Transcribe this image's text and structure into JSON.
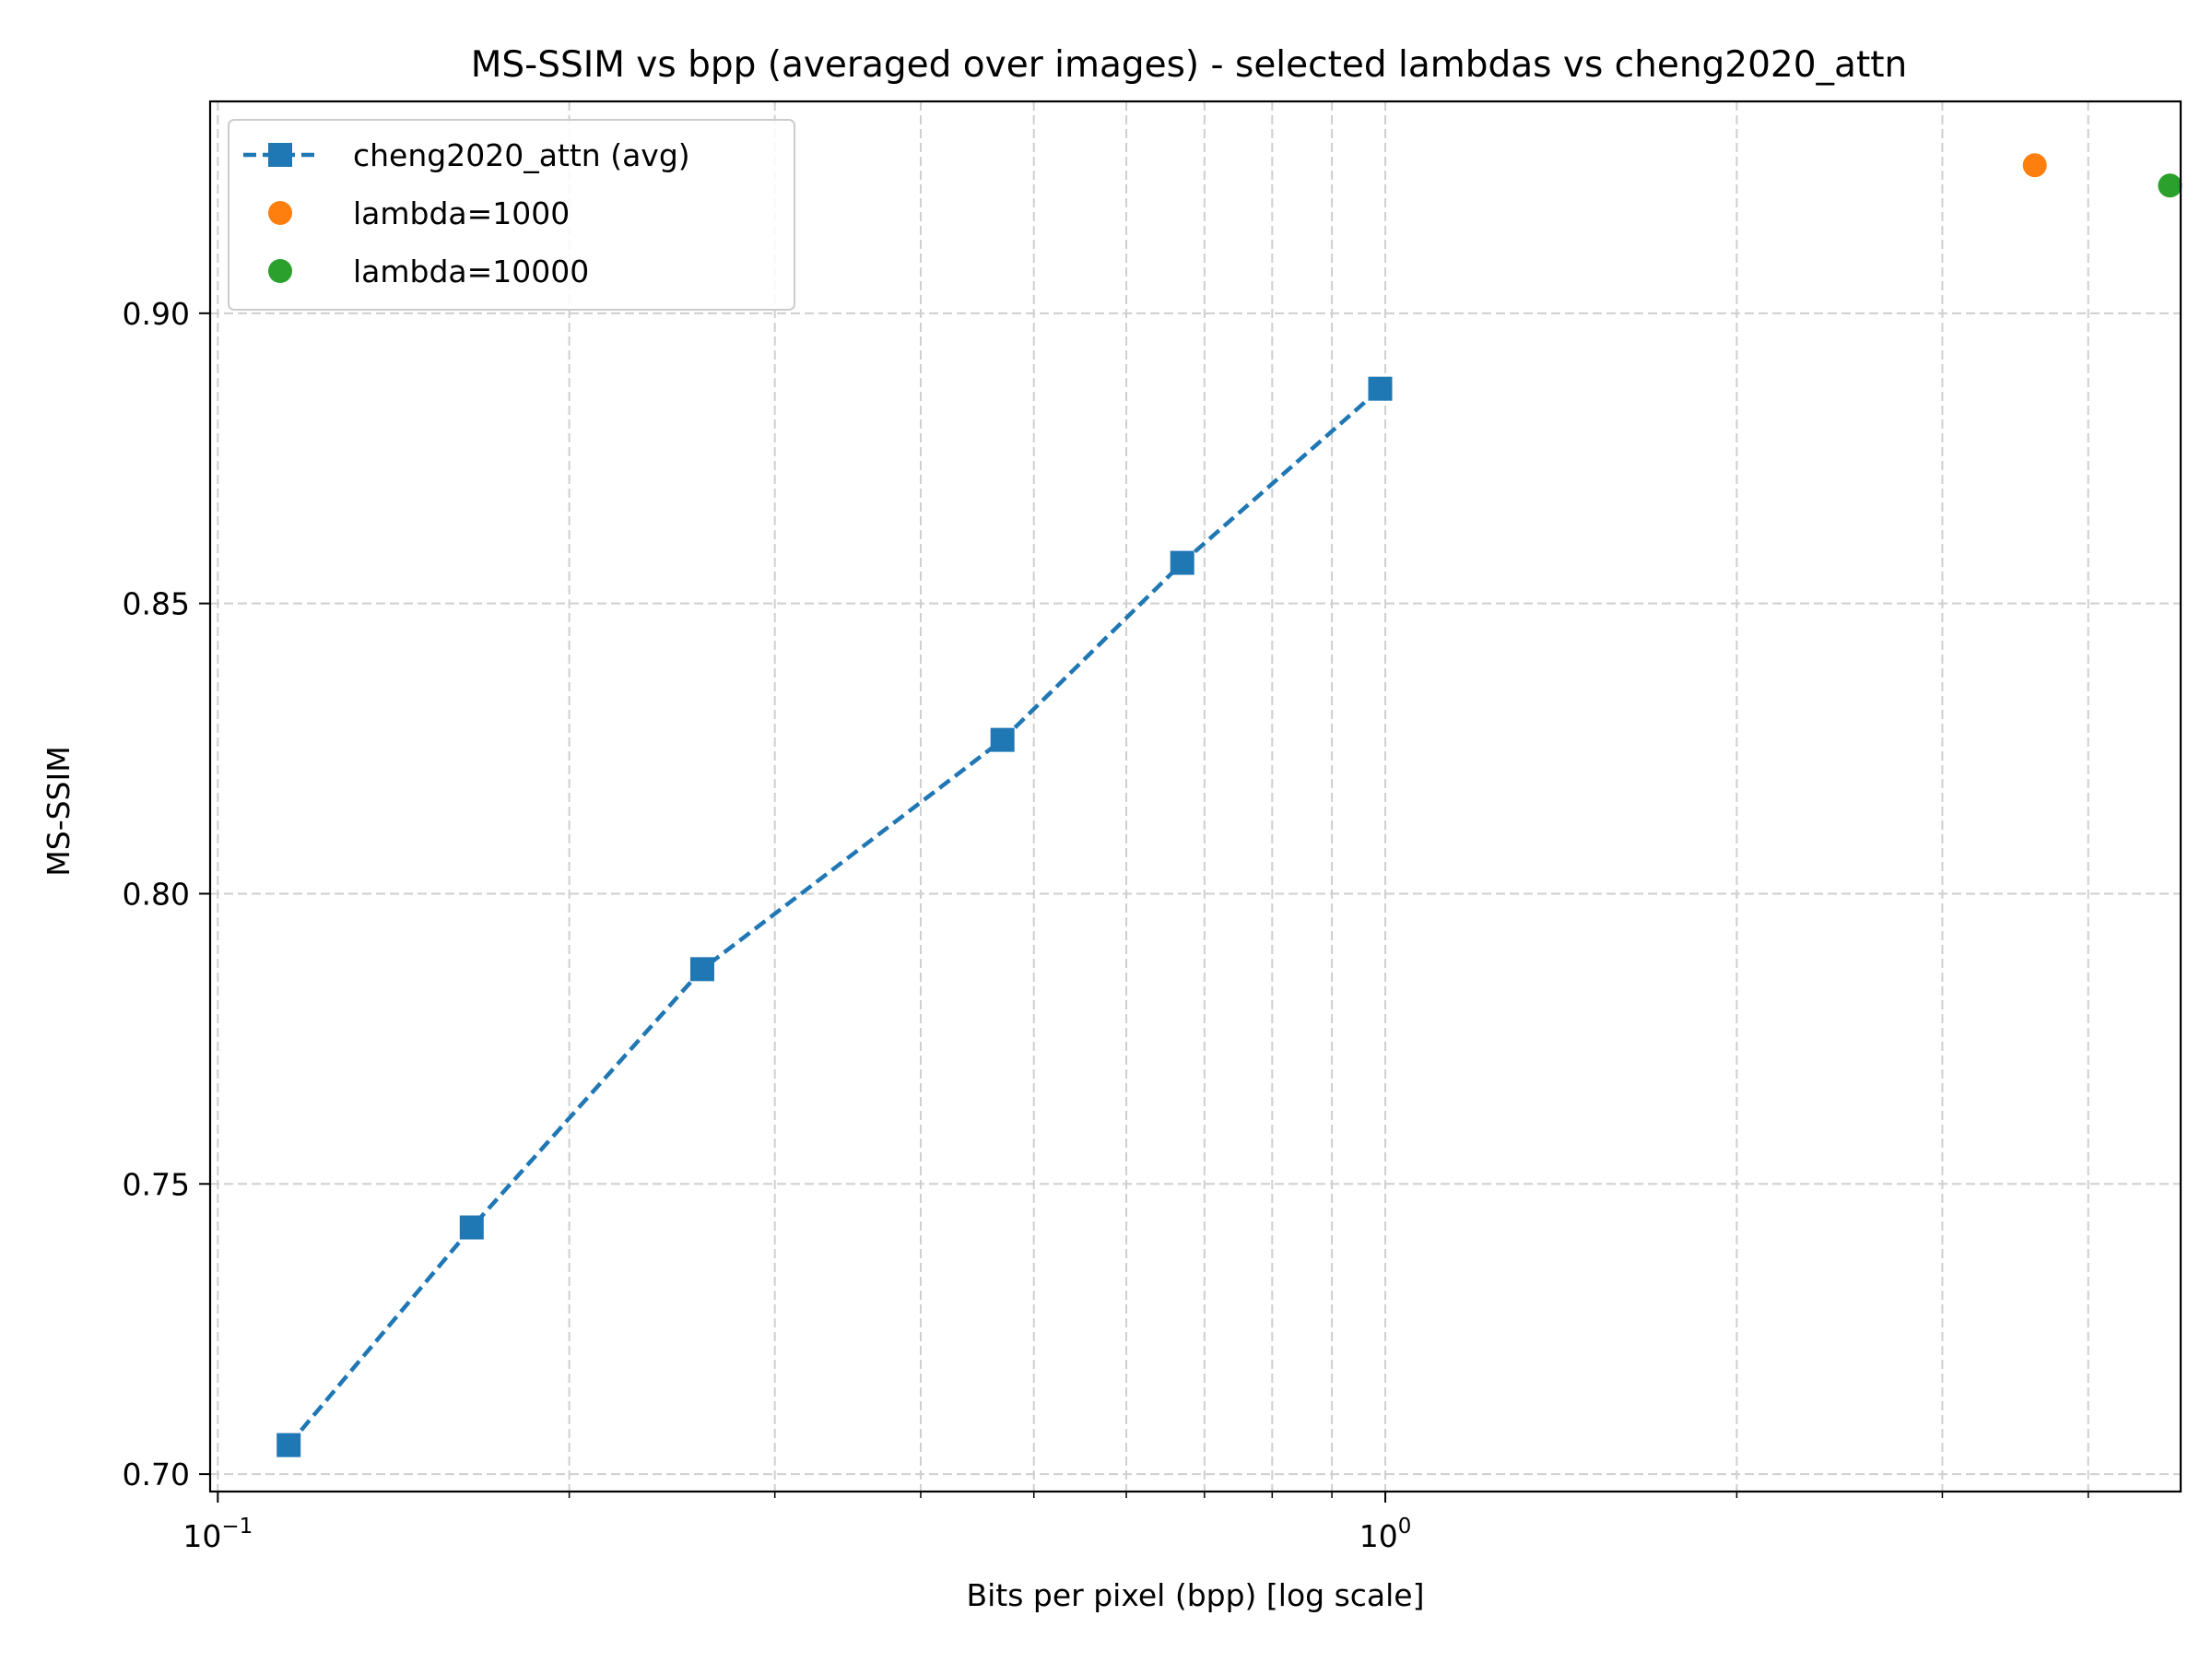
{
  "chart_data": {
    "type": "line",
    "title": "MS-SSIM vs bpp (averaged over images) - selected lambdas vs cheng2020_attn",
    "xlabel": "Bits per pixel (bpp) [log scale]",
    "ylabel": "MS-SSIM",
    "xscale": "log",
    "xlim": [
      0.0985,
      4.8
    ],
    "ylim": [
      0.697,
      0.9365
    ],
    "xticks": [
      {
        "value": 0.1,
        "base": "10",
        "exp": "−1"
      },
      {
        "value": 1,
        "base": "10",
        "exp": "0"
      }
    ],
    "yticks": [
      {
        "value": 0.7,
        "label": "0.70"
      },
      {
        "value": 0.75,
        "label": "0.75"
      },
      {
        "value": 0.8,
        "label": "0.80"
      },
      {
        "value": 0.85,
        "label": "0.85"
      },
      {
        "value": 0.9,
        "label": "0.90"
      }
    ],
    "grid": true,
    "legend_position": "top-left",
    "series": [
      {
        "name": "cheng2020_attn (avg)",
        "kind": "line",
        "color": "#1f77b4",
        "linestyle": "dashed",
        "marker": "square",
        "x": [
          0.115,
          0.165,
          0.26,
          0.47,
          0.67,
          0.99
        ],
        "y": [
          0.705,
          0.7425,
          0.787,
          0.8265,
          0.857,
          0.887
        ]
      },
      {
        "name": "lambda=1000",
        "kind": "scatter",
        "color": "#ff7f0e",
        "marker": "circle",
        "x": [
          3.6
        ],
        "y": [
          0.9255
        ]
      },
      {
        "name": "lambda=10000",
        "kind": "scatter",
        "color": "#2ca02c",
        "marker": "circle",
        "x": [
          4.7
        ],
        "y": [
          0.922
        ]
      }
    ]
  }
}
